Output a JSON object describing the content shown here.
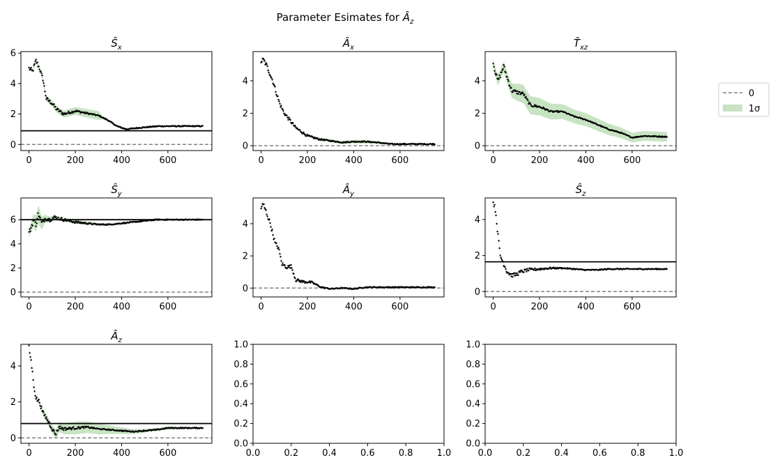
{
  "figure": {
    "suptitle": "Parameter Esimates for ",
    "suptitle_math": "Â",
    "suptitle_sub": "z"
  },
  "legend": {
    "entries": [
      {
        "label": "0",
        "style": "dashed",
        "color": "#808080"
      },
      {
        "label": "1σ",
        "style": "band",
        "color": "#c7e3c2"
      }
    ],
    "placement": "right"
  },
  "colors": {
    "points": "#000000",
    "reference": "#000000",
    "zero": "#808080",
    "band": "#c7e3c2"
  },
  "chart_data": [
    {
      "type": "scatter",
      "title": "Ŝ",
      "title_sub": "x",
      "xlim": [
        -35,
        790
      ],
      "ylim": [
        -0.4,
        6.1
      ],
      "xticks": [
        0,
        200,
        400,
        600
      ],
      "yticks": [
        0,
        2,
        4,
        6
      ],
      "reference_line": 0.9,
      "knots": [
        [
          0,
          5.0
        ],
        [
          15,
          4.8
        ],
        [
          30,
          5.5
        ],
        [
          45,
          5.0
        ],
        [
          60,
          4.3
        ],
        [
          75,
          3.0
        ],
        [
          100,
          2.7
        ],
        [
          120,
          2.3
        ],
        [
          150,
          2.0
        ],
        [
          200,
          2.2
        ],
        [
          250,
          2.05
        ],
        [
          300,
          1.9
        ],
        [
          340,
          1.6
        ],
        [
          380,
          1.2
        ],
        [
          420,
          1.0
        ],
        [
          480,
          1.1
        ],
        [
          560,
          1.2
        ],
        [
          650,
          1.2
        ],
        [
          750,
          1.2
        ]
      ],
      "band": [
        [
          0,
          0.1
        ],
        [
          100,
          0.2
        ],
        [
          200,
          0.25
        ],
        [
          300,
          0.3
        ],
        [
          320,
          0.1
        ],
        [
          420,
          0.08
        ],
        [
          750,
          0.04
        ]
      ]
    },
    {
      "type": "scatter",
      "title": "Â",
      "title_sub": "x",
      "xlim": [
        -35,
        790
      ],
      "ylim": [
        -0.3,
        5.8
      ],
      "xticks": [
        0,
        200,
        400,
        600
      ],
      "yticks": [
        0,
        2,
        4
      ],
      "reference_line": null,
      "knots": [
        [
          0,
          5.2
        ],
        [
          10,
          5.3
        ],
        [
          25,
          4.9
        ],
        [
          50,
          4.0
        ],
        [
          80,
          2.6
        ],
        [
          100,
          2.0
        ],
        [
          150,
          1.1
        ],
        [
          200,
          0.6
        ],
        [
          250,
          0.4
        ],
        [
          300,
          0.3
        ],
        [
          350,
          0.2
        ],
        [
          400,
          0.25
        ],
        [
          450,
          0.25
        ],
        [
          500,
          0.2
        ],
        [
          560,
          0.1
        ],
        [
          650,
          0.1
        ],
        [
          750,
          0.1
        ]
      ],
      "band": [
        [
          0,
          0.05
        ],
        [
          200,
          0.05
        ],
        [
          350,
          0.1
        ],
        [
          450,
          0.12
        ],
        [
          550,
          0.05
        ],
        [
          750,
          0.03
        ]
      ]
    },
    {
      "type": "scatter",
      "title": "T̂",
      "title_sub": "xz",
      "xlim": [
        -35,
        790
      ],
      "ylim": [
        -0.3,
        5.8
      ],
      "xticks": [
        0,
        200,
        400,
        600
      ],
      "yticks": [
        0,
        2,
        4
      ],
      "reference_line": null,
      "knots": [
        [
          0,
          5.1
        ],
        [
          10,
          4.5
        ],
        [
          20,
          4.0
        ],
        [
          35,
          4.5
        ],
        [
          45,
          4.9
        ],
        [
          60,
          4.2
        ],
        [
          80,
          3.4
        ],
        [
          100,
          3.3
        ],
        [
          130,
          3.2
        ],
        [
          160,
          2.5
        ],
        [
          200,
          2.4
        ],
        [
          250,
          2.1
        ],
        [
          300,
          2.1
        ],
        [
          350,
          1.8
        ],
        [
          400,
          1.6
        ],
        [
          450,
          1.3
        ],
        [
          500,
          1.0
        ],
        [
          550,
          0.8
        ],
        [
          600,
          0.5
        ],
        [
          650,
          0.6
        ],
        [
          750,
          0.55
        ]
      ],
      "band": [
        [
          0,
          0.3
        ],
        [
          60,
          0.35
        ],
        [
          110,
          0.55
        ],
        [
          180,
          0.55
        ],
        [
          300,
          0.45
        ],
        [
          400,
          0.4
        ],
        [
          500,
          0.35
        ],
        [
          600,
          0.3
        ],
        [
          750,
          0.3
        ]
      ]
    },
    {
      "type": "scatter",
      "title": "Ŝ",
      "title_sub": "y",
      "xlim": [
        -35,
        790
      ],
      "ylim": [
        -0.4,
        7.8
      ],
      "xticks": [
        0,
        200,
        400,
        600
      ],
      "yticks": [
        0,
        2,
        4,
        6
      ],
      "reference_line": 6.0,
      "knots": [
        [
          0,
          4.9
        ],
        [
          10,
          5.4
        ],
        [
          20,
          6.0
        ],
        [
          30,
          5.6
        ],
        [
          40,
          6.5
        ],
        [
          55,
          5.7
        ],
        [
          70,
          6.1
        ],
        [
          90,
          6.0
        ],
        [
          110,
          6.2
        ],
        [
          150,
          6.0
        ],
        [
          200,
          5.8
        ],
        [
          250,
          5.7
        ],
        [
          300,
          5.6
        ],
        [
          350,
          5.6
        ],
        [
          400,
          5.7
        ],
        [
          450,
          5.8
        ],
        [
          500,
          5.9
        ],
        [
          550,
          6.0
        ],
        [
          650,
          6.0
        ],
        [
          750,
          6.0
        ]
      ],
      "band": [
        [
          0,
          0.3
        ],
        [
          40,
          0.8
        ],
        [
          70,
          0.3
        ],
        [
          120,
          0.15
        ],
        [
          300,
          0.12
        ],
        [
          750,
          0.05
        ]
      ]
    },
    {
      "type": "scatter",
      "title": "Â",
      "title_sub": "y",
      "xlim": [
        -35,
        790
      ],
      "ylim": [
        -0.55,
        5.6
      ],
      "xticks": [
        0,
        200,
        400,
        600
      ],
      "yticks": [
        0,
        2,
        4
      ],
      "reference_line": null,
      "knots": [
        [
          0,
          5.0
        ],
        [
          10,
          5.2
        ],
        [
          20,
          4.8
        ],
        [
          40,
          4.0
        ],
        [
          60,
          2.8
        ],
        [
          75,
          2.5
        ],
        [
          90,
          1.5
        ],
        [
          110,
          1.3
        ],
        [
          130,
          1.35
        ],
        [
          150,
          0.5
        ],
        [
          180,
          0.4
        ],
        [
          220,
          0.35
        ],
        [
          260,
          0.05
        ],
        [
          300,
          -0.05
        ],
        [
          350,
          0.0
        ],
        [
          400,
          -0.05
        ],
        [
          450,
          0.05
        ],
        [
          500,
          0.05
        ],
        [
          750,
          0.05
        ]
      ],
      "band": [
        [
          0,
          0.05
        ],
        [
          750,
          0.04
        ]
      ]
    },
    {
      "type": "scatter",
      "title": "Ŝ",
      "title_sub": "z",
      "xlim": [
        -35,
        790
      ],
      "ylim": [
        -0.3,
        5.2
      ],
      "xticks": [
        0,
        200,
        400,
        600
      ],
      "yticks": [
        0,
        2,
        4
      ],
      "reference_line": 1.65,
      "knots": [
        [
          0,
          5.0
        ],
        [
          10,
          4.5
        ],
        [
          20,
          3.2
        ],
        [
          30,
          2.0
        ],
        [
          40,
          1.7
        ],
        [
          50,
          1.4
        ],
        [
          60,
          1.1
        ],
        [
          80,
          0.9
        ],
        [
          100,
          0.95
        ],
        [
          120,
          1.1
        ],
        [
          150,
          1.2
        ],
        [
          200,
          1.25
        ],
        [
          250,
          1.3
        ],
        [
          300,
          1.3
        ],
        [
          350,
          1.25
        ],
        [
          400,
          1.2
        ],
        [
          450,
          1.2
        ],
        [
          500,
          1.25
        ],
        [
          600,
          1.25
        ],
        [
          750,
          1.25
        ]
      ],
      "band": [
        [
          0,
          0.05
        ],
        [
          750,
          0.04
        ]
      ]
    },
    {
      "type": "scatter",
      "title": "Â",
      "title_sub": "z",
      "xlim": [
        -35,
        790
      ],
      "ylim": [
        -0.3,
        5.2
      ],
      "xticks": [
        0,
        200,
        400,
        600
      ],
      "yticks": [
        0,
        2,
        4
      ],
      "reference_line": 0.8,
      "knots": [
        [
          0,
          5.0
        ],
        [
          10,
          4.2
        ],
        [
          20,
          3.0
        ],
        [
          30,
          2.2
        ],
        [
          45,
          2.0
        ],
        [
          60,
          1.4
        ],
        [
          80,
          1.0
        ],
        [
          100,
          0.5
        ],
        [
          115,
          0.2
        ],
        [
          130,
          0.6
        ],
        [
          150,
          0.5
        ],
        [
          200,
          0.55
        ],
        [
          250,
          0.6
        ],
        [
          300,
          0.5
        ],
        [
          350,
          0.45
        ],
        [
          400,
          0.4
        ],
        [
          450,
          0.35
        ],
        [
          500,
          0.4
        ],
        [
          550,
          0.45
        ],
        [
          600,
          0.55
        ],
        [
          650,
          0.55
        ],
        [
          750,
          0.55
        ]
      ],
      "band": [
        [
          0,
          0.05
        ],
        [
          110,
          0.25
        ],
        [
          200,
          0.35
        ],
        [
          300,
          0.3
        ],
        [
          380,
          0.2
        ],
        [
          500,
          0.1
        ],
        [
          750,
          0.05
        ]
      ]
    },
    {
      "type": "scatter",
      "title": "",
      "xlim": [
        0,
        1
      ],
      "ylim": [
        0,
        1
      ],
      "xticks": [
        0.0,
        0.2,
        0.4,
        0.6,
        0.8,
        1.0
      ],
      "yticks": [
        0.0,
        0.2,
        0.4,
        0.6,
        0.8,
        1.0
      ],
      "empty": true
    },
    {
      "type": "scatter",
      "title": "",
      "xlim": [
        0,
        1
      ],
      "ylim": [
        0,
        1
      ],
      "xticks": [
        0.0,
        0.2,
        0.4,
        0.6,
        0.8,
        1.0
      ],
      "yticks": [
        0.0,
        0.2,
        0.4,
        0.6,
        0.8,
        1.0
      ],
      "empty": true
    }
  ]
}
